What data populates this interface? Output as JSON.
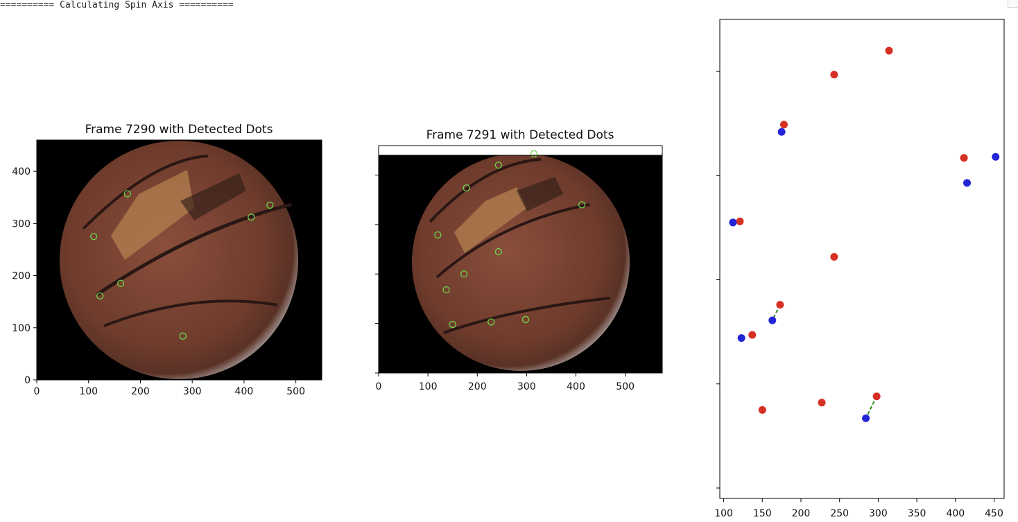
{
  "console": {
    "status_line": "========== Calculating Spin Axis =========="
  },
  "chart_data": [
    {
      "type": "image",
      "title": "Frame 7290 with Detected Dots",
      "xlim": [
        0,
        550
      ],
      "ylim": [
        0,
        460
      ],
      "xticks": [
        "0",
        "100",
        "200",
        "300",
        "400",
        "500"
      ],
      "yticks": [
        "0",
        "100",
        "200",
        "300",
        "400"
      ],
      "detected_dots": [
        {
          "x": 175,
          "y": 357
        },
        {
          "x": 110,
          "y": 275
        },
        {
          "x": 414,
          "y": 312
        },
        {
          "x": 450,
          "y": 335
        },
        {
          "x": 162,
          "y": 185
        },
        {
          "x": 122,
          "y": 161
        },
        {
          "x": 282,
          "y": 84
        }
      ]
    },
    {
      "type": "image",
      "title": "Frame 7291 with Detected Dots",
      "xlim": [
        0,
        575
      ],
      "ylim": [
        0,
        460
      ],
      "xticks": [
        "0",
        "100",
        "200",
        "300",
        "400",
        "500"
      ],
      "detected_dots": [
        {
          "x": 315,
          "y": 443
        },
        {
          "x": 243,
          "y": 420
        },
        {
          "x": 178,
          "y": 374
        },
        {
          "x": 412,
          "y": 340
        },
        {
          "x": 120,
          "y": 279
        },
        {
          "x": 243,
          "y": 245
        },
        {
          "x": 173,
          "y": 200
        },
        {
          "x": 137,
          "y": 168
        },
        {
          "x": 150,
          "y": 98
        },
        {
          "x": 228,
          "y": 103
        },
        {
          "x": 298,
          "y": 108
        }
      ]
    },
    {
      "type": "scatter",
      "xlim": [
        95,
        463
      ],
      "ylim": [
        -10,
        450
      ],
      "xticks": [
        "100",
        "150",
        "200",
        "250",
        "300",
        "350",
        "400",
        "450"
      ],
      "series": [
        {
          "color": "#d62f23",
          "points": [
            [
              314,
              420
            ],
            [
              243,
              397
            ],
            [
              178,
              349
            ],
            [
              411,
              317
            ],
            [
              121,
              256
            ],
            [
              243,
              222
            ],
            [
              173,
              176
            ],
            [
              137,
              147
            ],
            [
              150,
              75
            ],
            [
              227,
              82
            ],
            [
              298,
              88
            ]
          ]
        },
        {
          "color": "#2424d8",
          "points": [
            [
              175,
              342
            ],
            [
              452,
              318
            ],
            [
              415,
              293
            ],
            [
              112,
              255
            ],
            [
              163,
              161
            ],
            [
              123,
              144
            ],
            [
              284,
              67
            ]
          ]
        }
      ],
      "connections": [
        {
          "from": [
            173,
            176
          ],
          "to": [
            163,
            161
          ]
        },
        {
          "from": [
            298,
            88
          ],
          "to": [
            284,
            67
          ]
        }
      ],
      "connection_color": "#2e8b22"
    }
  ]
}
